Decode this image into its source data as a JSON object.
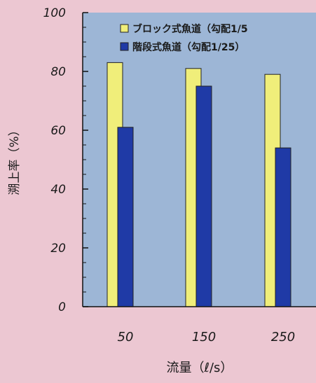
{
  "chart_data": {
    "type": "bar",
    "title": "",
    "xlabel": "流量（ℓ/s）",
    "ylabel": "溯上率（%）",
    "categories": [
      "50",
      "150",
      "250"
    ],
    "series": [
      {
        "name": "ブロック式魚道（勾配1/5",
        "values": [
          83,
          81,
          79
        ],
        "color": "#f0ee7a"
      },
      {
        "name": "階段式魚道（勾配1/25）",
        "values": [
          61,
          75,
          54
        ],
        "color": "#1f3aa6"
      }
    ],
    "ylim": [
      0,
      100
    ],
    "yticks": [
      "0",
      "20",
      "40",
      "60",
      "80",
      "100"
    ],
    "grid": false,
    "legend_position": "top-right"
  },
  "colors": {
    "background": "#ecc7d2",
    "plot_area": "#9db6d6",
    "axis": "#111111",
    "bar_stroke": "#222222"
  }
}
